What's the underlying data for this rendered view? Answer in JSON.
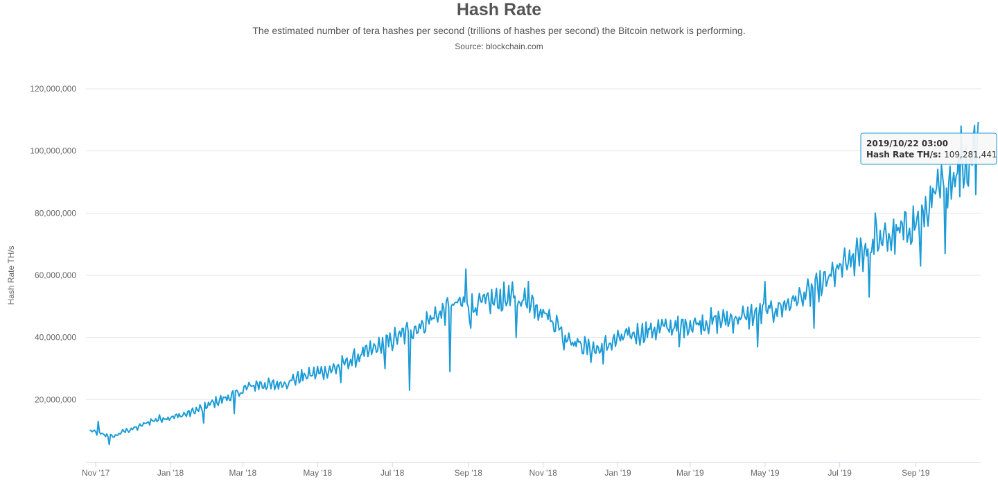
{
  "title": "Hash Rate",
  "subtitle": "The estimated number of tera hashes per second (trillions of hashes per second) the Bitcoin network is performing.",
  "source": "Source: blockchain.com",
  "colors": {
    "series": "#1c9bd6",
    "grid": "#e6e6e6",
    "axis": "#ccd6eb",
    "text": "#666666"
  },
  "tooltip": {
    "date": "2019/10/22 03:00",
    "series_label": "Hash Rate TH/s",
    "value_text": "109,281,441"
  },
  "chart_data": {
    "type": "line",
    "ylabel": "Hash Rate TH/s",
    "xlabel": "",
    "ylim": [
      0,
      120000000
    ],
    "yticks": [
      20000000,
      40000000,
      60000000,
      80000000,
      100000000,
      120000000
    ],
    "ytick_labels": [
      "20,000,000",
      "40,000,000",
      "60,000,000",
      "80,000,000",
      "100,000,000",
      "120,000,000"
    ],
    "xlim": [
      "2017-10-24",
      "2019-10-24"
    ],
    "xticks": [
      "2017-11-01",
      "2018-01-01",
      "2018-03-01",
      "2018-05-01",
      "2018-07-01",
      "2018-09-01",
      "2018-11-01",
      "2019-01-01",
      "2019-03-01",
      "2019-05-01",
      "2019-07-01",
      "2019-09-01"
    ],
    "xtick_labels": [
      "Nov '17",
      "Jan '18",
      "Mar '18",
      "May '18",
      "Jul '18",
      "Sep '18",
      "Nov '18",
      "Jan '19",
      "Mar '19",
      "May '19",
      "Jul '19",
      "Sep '19"
    ],
    "grid": true,
    "legend": "none",
    "series": [
      {
        "points": [
          [
            "2017-10-27",
            10000000
          ],
          [
            "2017-11-05",
            9000000
          ],
          [
            "2017-11-15",
            8000000
          ],
          [
            "2017-11-25",
            10000000
          ],
          [
            "2017-12-05",
            11000000
          ],
          [
            "2017-12-15",
            13000000
          ],
          [
            "2017-12-25",
            14000000
          ],
          [
            "2018-01-05",
            14500000
          ],
          [
            "2018-01-15",
            15500000
          ],
          [
            "2018-01-25",
            17000000
          ],
          [
            "2018-02-05",
            19000000
          ],
          [
            "2018-02-15",
            20500000
          ],
          [
            "2018-02-25",
            22000000
          ],
          [
            "2018-03-05",
            24000000
          ],
          [
            "2018-03-15",
            25000000
          ],
          [
            "2018-03-25",
            24500000
          ],
          [
            "2018-04-05",
            25500000
          ],
          [
            "2018-04-15",
            27000000
          ],
          [
            "2018-04-25",
            28000000
          ],
          [
            "2018-05-05",
            29000000
          ],
          [
            "2018-05-15",
            30000000
          ],
          [
            "2018-05-25",
            32000000
          ],
          [
            "2018-06-05",
            34000000
          ],
          [
            "2018-06-15",
            36000000
          ],
          [
            "2018-06-25",
            38000000
          ],
          [
            "2018-07-05",
            40000000
          ],
          [
            "2018-07-15",
            42000000
          ],
          [
            "2018-07-25",
            44000000
          ],
          [
            "2018-08-05",
            47000000
          ],
          [
            "2018-08-15",
            49000000
          ],
          [
            "2018-08-25",
            51000000
          ],
          [
            "2018-09-05",
            50000000
          ],
          [
            "2018-09-15",
            51000000
          ],
          [
            "2018-09-25",
            52000000
          ],
          [
            "2018-10-05",
            53000000
          ],
          [
            "2018-10-15",
            52000000
          ],
          [
            "2018-10-25",
            51000000
          ],
          [
            "2018-11-05",
            47000000
          ],
          [
            "2018-11-15",
            43000000
          ],
          [
            "2018-11-25",
            39000000
          ],
          [
            "2018-12-05",
            37000000
          ],
          [
            "2018-12-15",
            36000000
          ],
          [
            "2018-12-25",
            38000000
          ],
          [
            "2019-01-05",
            40000000
          ],
          [
            "2019-01-15",
            41000000
          ],
          [
            "2019-01-25",
            42000000
          ],
          [
            "2019-02-05",
            43000000
          ],
          [
            "2019-02-15",
            43500000
          ],
          [
            "2019-02-25",
            44000000
          ],
          [
            "2019-03-05",
            44500000
          ],
          [
            "2019-03-15",
            45000000
          ],
          [
            "2019-03-25",
            45500000
          ],
          [
            "2019-04-05",
            46000000
          ],
          [
            "2019-04-15",
            46500000
          ],
          [
            "2019-04-25",
            47500000
          ],
          [
            "2019-05-05",
            48500000
          ],
          [
            "2019-05-15",
            50000000
          ],
          [
            "2019-05-25",
            52000000
          ],
          [
            "2019-06-05",
            54000000
          ],
          [
            "2019-06-15",
            56000000
          ],
          [
            "2019-06-25",
            60000000
          ],
          [
            "2019-07-05",
            63000000
          ],
          [
            "2019-07-15",
            66000000
          ],
          [
            "2019-07-25",
            69000000
          ],
          [
            "2019-08-05",
            71000000
          ],
          [
            "2019-08-15",
            73000000
          ],
          [
            "2019-08-25",
            75000000
          ],
          [
            "2019-09-05",
            78000000
          ],
          [
            "2019-09-15",
            84000000
          ],
          [
            "2019-09-25",
            90000000
          ],
          [
            "2019-10-05",
            93000000
          ],
          [
            "2019-10-15",
            96000000
          ],
          [
            "2019-10-22",
            109281441
          ]
        ],
        "extremes": [
          [
            "2017-11-03",
            13000000
          ],
          [
            "2017-11-12",
            5500000
          ],
          [
            "2018-01-28",
            12500000
          ],
          [
            "2018-02-22",
            15500000
          ],
          [
            "2018-05-20",
            25500000
          ],
          [
            "2018-06-25",
            30000000
          ],
          [
            "2018-07-15",
            23000000
          ],
          [
            "2018-08-17",
            29000000
          ],
          [
            "2018-08-30",
            62000000
          ],
          [
            "2018-09-03",
            43000000
          ],
          [
            "2018-10-10",
            40000000
          ],
          [
            "2018-10-20",
            58000000
          ],
          [
            "2018-11-18",
            36000000
          ],
          [
            "2018-12-10",
            32000000
          ],
          [
            "2018-12-20",
            31500000
          ],
          [
            "2019-02-20",
            37000000
          ],
          [
            "2019-04-25",
            37000000
          ],
          [
            "2019-05-01",
            58000000
          ],
          [
            "2019-06-10",
            43000000
          ],
          [
            "2019-07-25",
            53000000
          ],
          [
            "2019-07-30",
            80000000
          ],
          [
            "2019-09-05",
            63000000
          ],
          [
            "2019-09-25",
            67000000
          ],
          [
            "2019-10-08",
            108000000
          ],
          [
            "2019-10-20",
            86000000
          ],
          [
            "2019-10-22",
            109281441
          ]
        ]
      }
    ]
  }
}
